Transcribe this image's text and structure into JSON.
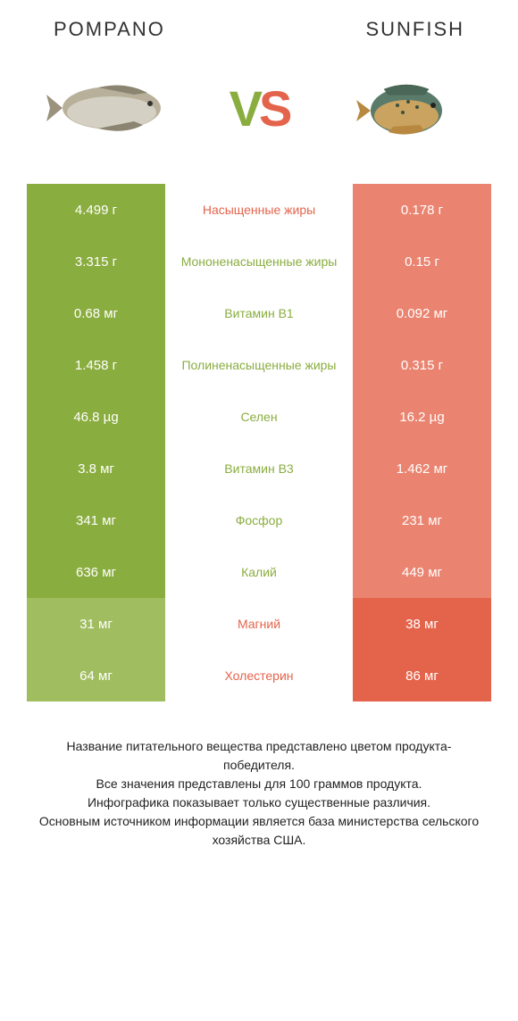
{
  "header": {
    "left_title": "POMPANO",
    "right_title": "SUNFISH",
    "vs_v": "V",
    "vs_s": "S"
  },
  "colors": {
    "green": "#8aad3f",
    "green_dim": "#a0bd5f",
    "red": "#e4644b",
    "red_dim": "#ea8470"
  },
  "rows": [
    {
      "left": "4.499 г",
      "mid": "Насыщенные жиры",
      "right": "0.178 г",
      "winner": "left",
      "mid_color": "red"
    },
    {
      "left": "3.315 г",
      "mid": "Мононенасыщенные жиры",
      "right": "0.15 г",
      "winner": "left",
      "mid_color": "green"
    },
    {
      "left": "0.68 мг",
      "mid": "Витамин B1",
      "right": "0.092 мг",
      "winner": "left",
      "mid_color": "green"
    },
    {
      "left": "1.458 г",
      "mid": "Полиненасыщенные жиры",
      "right": "0.315 г",
      "winner": "left",
      "mid_color": "green"
    },
    {
      "left": "46.8 µg",
      "mid": "Селен",
      "right": "16.2 µg",
      "winner": "left",
      "mid_color": "green"
    },
    {
      "left": "3.8 мг",
      "mid": "Витамин B3",
      "right": "1.462 мг",
      "winner": "left",
      "mid_color": "green"
    },
    {
      "left": "341 мг",
      "mid": "Фосфор",
      "right": "231 мг",
      "winner": "left",
      "mid_color": "green"
    },
    {
      "left": "636 мг",
      "mid": "Калий",
      "right": "449 мг",
      "winner": "left",
      "mid_color": "green"
    },
    {
      "left": "31 мг",
      "mid": "Магний",
      "right": "38 мг",
      "winner": "right",
      "mid_color": "red"
    },
    {
      "left": "64 мг",
      "mid": "Холестерин",
      "right": "86 мг",
      "winner": "right",
      "mid_color": "red"
    }
  ],
  "footer": {
    "line1": "Название питательного вещества представлено цветом продукта-победителя.",
    "line2": "Все значения представлены для 100 граммов продукта.",
    "line3": "Инфографика показывает только существенные различия.",
    "line4": "Основным источником информации является база министерства сельского хозяйства США."
  }
}
